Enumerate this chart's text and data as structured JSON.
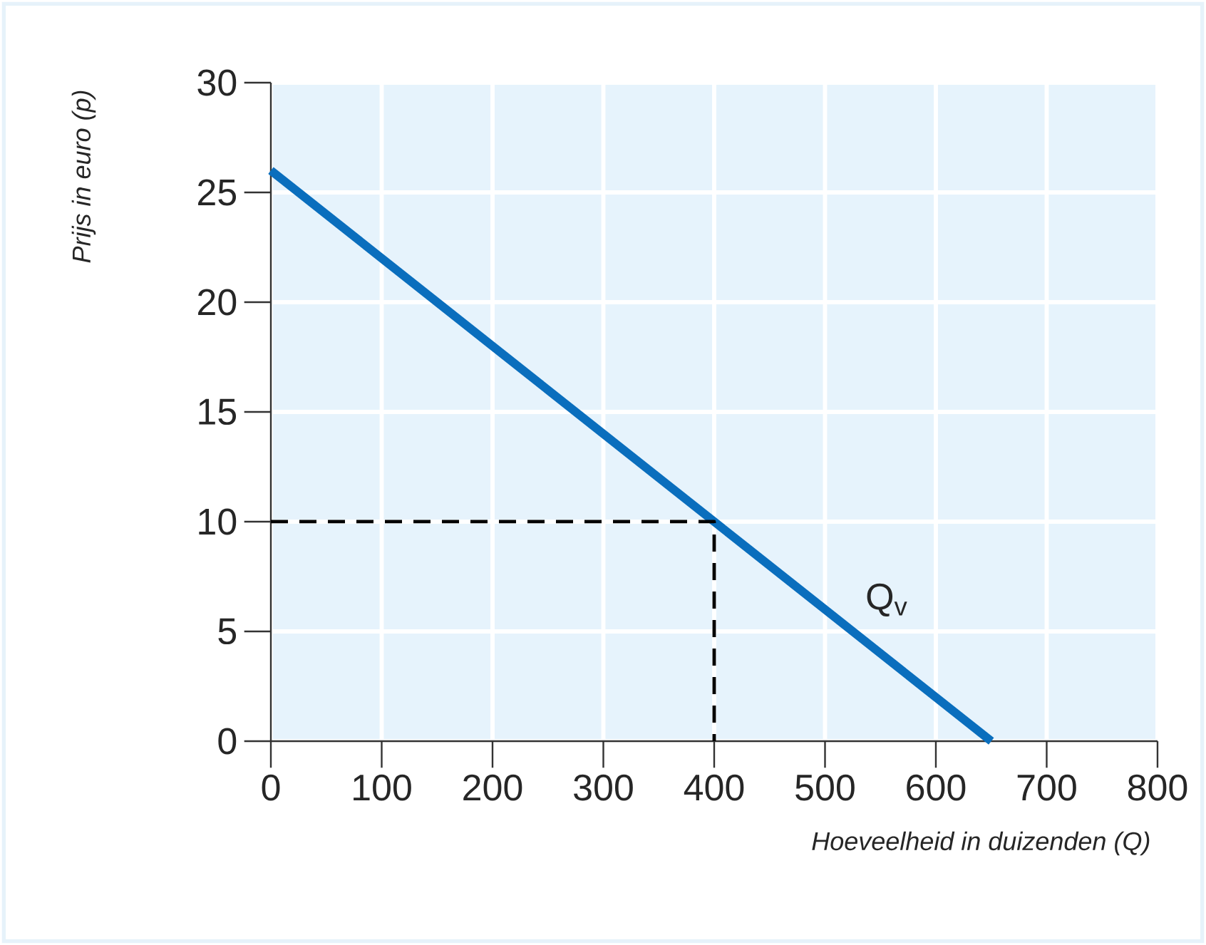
{
  "chart_data": {
    "type": "line",
    "xlabel": "Hoeveelheid in duizenden (Q)",
    "ylabel": "Prijs in euro (p)",
    "xlim": [
      0,
      800
    ],
    "ylim": [
      0,
      30
    ],
    "xticks": [
      0,
      100,
      200,
      300,
      400,
      500,
      600,
      700,
      800
    ],
    "yticks": [
      0,
      5,
      10,
      15,
      20,
      25,
      30
    ],
    "grid": true,
    "series": [
      {
        "name": "Q$_{v}$",
        "color": "#0a6ebd",
        "x": [
          0,
          650
        ],
        "values": [
          26,
          0
        ]
      },
      {
        "color": "#000000",
        "line_style": "dashed",
        "x": [
          0,
          400,
          400
        ],
        "values": [
          10,
          10,
          0
        ]
      }
    ]
  }
}
